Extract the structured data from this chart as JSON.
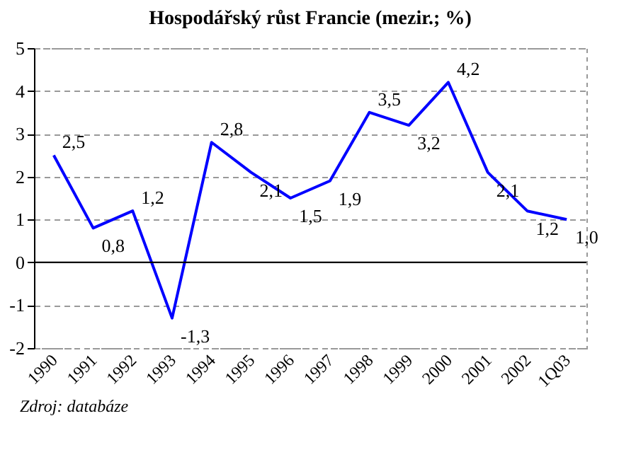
{
  "chart_data": {
    "type": "line",
    "title": "Hospodářský růst Francie (mezir.; %)",
    "categories": [
      "1990",
      "1991",
      "1992",
      "1993",
      "1994",
      "1995",
      "1996",
      "1997",
      "1998",
      "1999",
      "2000",
      "2001",
      "2002",
      "1Q03"
    ],
    "series": [
      {
        "color": "#0000ff",
        "values": [
          2.5,
          0.8,
          1.2,
          -1.3,
          2.8,
          2.1,
          1.5,
          1.9,
          3.5,
          3.2,
          4.2,
          2.1,
          1.2,
          1.0
        ],
        "value_labels": [
          "2,5",
          "0,8",
          "1,2",
          "-1,3",
          "2,8",
          "2,1",
          "1,5",
          "1,9",
          "3,5",
          "3,2",
          "4,2",
          "2,1",
          "1,2",
          "1,0"
        ]
      }
    ],
    "ylim": [
      -2,
      5
    ],
    "yticks": [
      -2,
      -1,
      0,
      1,
      2,
      3,
      4,
      5
    ],
    "grid": "y",
    "marker": "none",
    "line_style": "solid",
    "ref_lines": [
      {
        "axis": "y",
        "value": 0,
        "color": "#000000"
      }
    ],
    "annotations": [
      "Zdroj: databáze"
    ]
  }
}
